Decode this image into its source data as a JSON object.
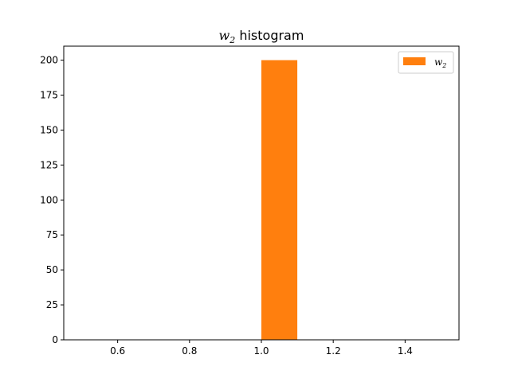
{
  "chart_data": {
    "type": "bar",
    "title": {
      "symbol": "w",
      "subscript": "2",
      "text": " histogram"
    },
    "bins": [
      {
        "x0": 1.0,
        "x1": 1.1,
        "count": 200
      }
    ],
    "bar_color": "#ff7f0e",
    "xlim": [
      0.45,
      1.55
    ],
    "ylim": [
      0,
      210
    ],
    "xticks": [
      {
        "value": 0.6,
        "label": "0.6"
      },
      {
        "value": 0.8,
        "label": "0.8"
      },
      {
        "value": 1.0,
        "label": "1.0"
      },
      {
        "value": 1.2,
        "label": "1.2"
      },
      {
        "value": 1.4,
        "label": "1.4"
      }
    ],
    "yticks": [
      {
        "value": 0,
        "label": "0"
      },
      {
        "value": 25,
        "label": "25"
      },
      {
        "value": 50,
        "label": "50"
      },
      {
        "value": 75,
        "label": "75"
      },
      {
        "value": 100,
        "label": "100"
      },
      {
        "value": 125,
        "label": "125"
      },
      {
        "value": 150,
        "label": "150"
      },
      {
        "value": 175,
        "label": "175"
      },
      {
        "value": 200,
        "label": "200"
      }
    ],
    "legend": {
      "placement": "top-right",
      "symbol": "w",
      "subscript": "2"
    },
    "grid": false
  }
}
